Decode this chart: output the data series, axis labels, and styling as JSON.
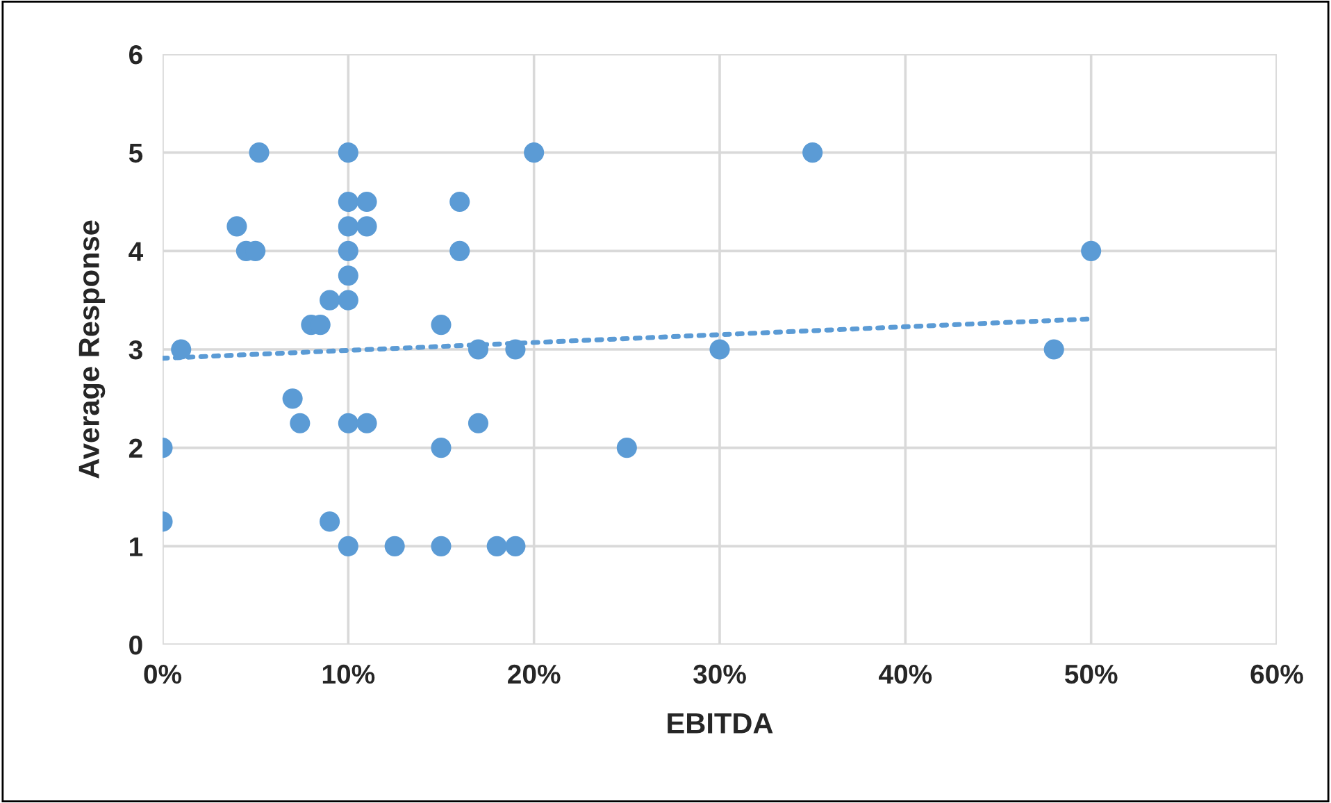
{
  "chart_data": {
    "type": "scatter",
    "xlabel": "EBITDA",
    "ylabel": "Average Response",
    "xlim": [
      0,
      60
    ],
    "xticks": [
      {
        "value": 0,
        "label": "0%"
      },
      {
        "value": 10,
        "label": "10%"
      },
      {
        "value": 20,
        "label": "20%"
      },
      {
        "value": 30,
        "label": "30%"
      },
      {
        "value": 40,
        "label": "40%"
      },
      {
        "value": 50,
        "label": "50%"
      },
      {
        "value": 60,
        "label": "60%"
      }
    ],
    "ylim": [
      0,
      6
    ],
    "yticks": [
      0,
      1,
      2,
      3,
      4,
      5,
      6
    ],
    "grid": true,
    "series": [
      {
        "marker": "circle",
        "color": "#5b9bd5",
        "x": [
          0,
          0,
          1,
          4,
          4.5,
          5,
          5.2,
          7,
          7.4,
          8,
          8.5,
          9,
          9,
          10,
          10,
          10,
          10,
          10,
          10,
          10,
          10,
          11,
          11,
          11,
          12.5,
          15,
          15,
          15,
          16,
          16,
          17,
          17,
          18,
          19,
          19,
          20,
          25,
          30,
          35,
          48,
          50
        ],
        "values": [
          2,
          1.25,
          3,
          4.25,
          4,
          4,
          5,
          2.5,
          2.25,
          3.25,
          3.25,
          3.5,
          1.25,
          5,
          4.5,
          4.25,
          4,
          3.75,
          3.5,
          2.25,
          1,
          4.5,
          4.25,
          2.25,
          1,
          3.25,
          2,
          1,
          4.5,
          4,
          3,
          2.25,
          1,
          3,
          1,
          5,
          2,
          3,
          5,
          3,
          4
        ]
      },
      {
        "type": "line",
        "color": "#5b9bd5",
        "line_style": "dotted",
        "x": [
          0,
          50
        ],
        "values": [
          2.91,
          3.31
        ]
      }
    ]
  }
}
